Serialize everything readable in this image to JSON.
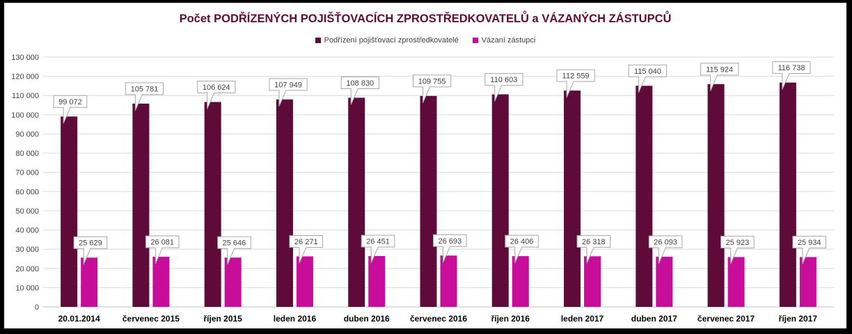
{
  "colors": {
    "series1": "#5e0b3a",
    "series2": "#c70d9a",
    "title": "#5e0b3a",
    "grid": "#d9d9d9",
    "axis_text": "#404040",
    "label_border": "#a6a6a6"
  },
  "chart_data": {
    "type": "bar",
    "title": "Počet PODŘÍZENÝCH POJIŠŤOVACÍCH ZPROSTŘEDKOVATELŮ a VÁZANÝCH ZÁSTUPCŮ",
    "categories": [
      "20.01.2014",
      "červenec 2015",
      "říjen 2015",
      "leden 2016",
      "duben 2016",
      "červenec 2016",
      "říjen 2016",
      "leden 2017",
      "duben 2017",
      "červenec 2017",
      "říjen 2017"
    ],
    "series": [
      {
        "name": "Podřízení pojišťovací zprostředkovatelé",
        "values": [
          99072,
          105781,
          106624,
          107949,
          108830,
          109755,
          110603,
          112559,
          115040,
          115924,
          116738
        ],
        "labels": [
          "99 072",
          "105 781",
          "106 624",
          "107 949",
          "108 830",
          "109 755",
          "110 603",
          "112 559",
          "115 040",
          "115 924",
          "116 738"
        ]
      },
      {
        "name": "Vázaní zástupci",
        "values": [
          25629,
          26081,
          25646,
          26271,
          26451,
          26693,
          26406,
          26318,
          26093,
          25923,
          25934
        ],
        "labels": [
          "25 629",
          "26 081",
          "25 646",
          "26 271",
          "26 451",
          "26 693",
          "26 406",
          "26 318",
          "26 093",
          "25 923",
          "25 934"
        ]
      }
    ],
    "xlabel": "",
    "ylabel": "",
    "ylim": [
      0,
      130000
    ],
    "yticks": [
      0,
      10000,
      20000,
      30000,
      40000,
      50000,
      60000,
      70000,
      80000,
      90000,
      100000,
      110000,
      120000,
      130000
    ],
    "ytick_labels": [
      "0",
      "10 000",
      "20 000",
      "30 000",
      "40 000",
      "50 000",
      "60 000",
      "70 000",
      "80 000",
      "90 000",
      "100 000",
      "110 000",
      "120 000",
      "130 000"
    ],
    "grid": true,
    "legend_position": "top"
  }
}
